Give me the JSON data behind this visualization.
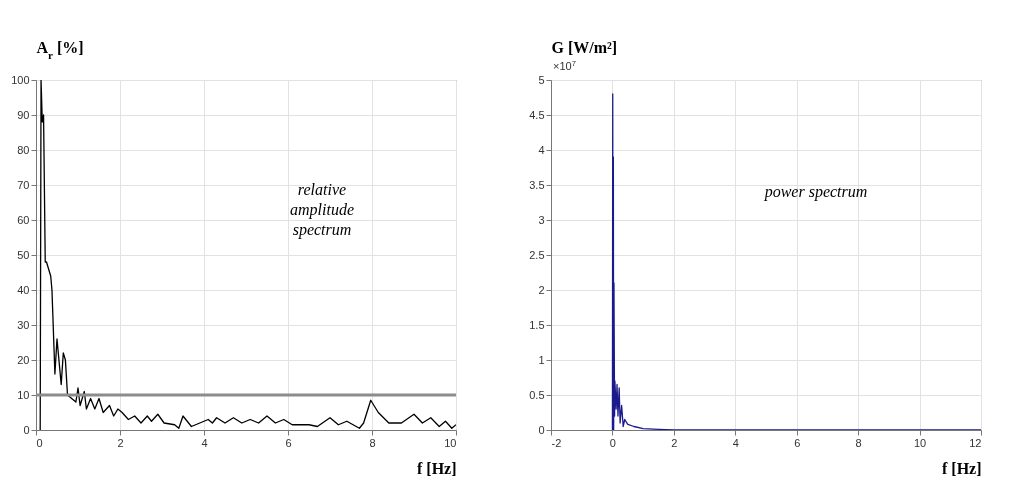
{
  "chart_data": [
    {
      "type": "line",
      "ylabel": "A$_{r}$ [%]",
      "xlabel": "f [Hz]",
      "annotations": [
        "relative amplitude spectrum"
      ],
      "x": [
        0.1,
        0.12,
        0.15,
        0.18,
        0.22,
        0.25,
        0.35,
        0.38,
        0.45,
        0.5,
        0.6,
        0.65,
        0.7,
        0.75,
        0.85,
        0.95,
        1.0,
        1.05,
        1.15,
        1.2,
        1.3,
        1.4,
        1.5,
        1.6,
        1.75,
        1.85,
        1.95,
        2.05,
        2.2,
        2.35,
        2.5,
        2.65,
        2.75,
        2.9,
        3.05,
        3.3,
        3.4,
        3.5,
        3.7,
        3.9,
        4.1,
        4.2,
        4.3,
        4.5,
        4.7,
        4.9,
        5.1,
        5.3,
        5.5,
        5.7,
        5.9,
        6.1,
        6.5,
        6.7,
        7.0,
        7.2,
        7.4,
        7.7,
        7.8,
        7.97,
        8.15,
        8.4,
        8.7,
        9.0,
        9.2,
        9.4,
        9.6,
        9.75,
        9.9,
        10
      ],
      "series": [
        {
          "color": "#000000",
          "values": [
            0,
            100,
            88,
            90,
            48,
            48,
            44,
            40,
            16,
            26,
            13,
            22,
            20,
            10,
            9,
            8,
            12,
            7,
            11,
            6,
            9,
            6,
            9,
            5,
            7,
            4,
            6,
            5,
            3,
            4,
            2,
            4,
            2.5,
            4.5,
            2,
            1.5,
            0.5,
            4,
            1,
            2,
            3,
            2,
            3.5,
            2,
            3.5,
            2,
            3,
            2,
            4,
            2,
            3,
            1.5,
            1.5,
            1,
            3.5,
            1.5,
            2.5,
            0.5,
            2,
            8.5,
            5,
            2,
            2,
            4.5,
            2,
            3.5,
            1,
            2.5,
            0.5,
            1.5
          ]
        }
      ],
      "xlim": [
        0,
        10
      ],
      "xticks": [
        0,
        2,
        4,
        6,
        8,
        10
      ],
      "ylim": [
        0,
        100
      ],
      "yticks": [
        0,
        10,
        20,
        30,
        40,
        50,
        60,
        70,
        80,
        90,
        100
      ],
      "grid": true,
      "ref_lines": [
        {
          "axis": "y",
          "value": 10,
          "color": "#8c8c8c"
        }
      ]
    },
    {
      "type": "line",
      "ylabel": "G [W/m²]",
      "xlabel": "f [Hz]",
      "annotations": [
        "power spectrum",
        "×10$^{7}$"
      ],
      "x": [
        0,
        0.01,
        0.02,
        0.03,
        0.04,
        0.05,
        0.07,
        0.08,
        0.12,
        0.15,
        0.18,
        0.22,
        0.25,
        0.3,
        0.35,
        0.4,
        0.5,
        0.7,
        1,
        1.5,
        2,
        12
      ],
      "series": [
        {
          "color": "#1a1a8c",
          "values": [
            0,
            4.8,
            0,
            3.9,
            0,
            2.1,
            0.2,
            0.7,
            0.3,
            0.65,
            0.2,
            0.6,
            0.1,
            0.35,
            0.05,
            0.15,
            0.08,
            0.05,
            0.02,
            0.01,
            0,
            0
          ]
        }
      ],
      "xlim": [
        -2,
        12
      ],
      "xticks": [
        -2,
        0,
        2,
        4,
        6,
        8,
        10,
        12
      ],
      "ylim": [
        0,
        5
      ],
      "yticks": [
        0,
        0.5,
        1,
        1.5,
        2,
        2.5,
        3,
        3.5,
        4,
        4.5,
        5
      ],
      "grid": true
    }
  ]
}
